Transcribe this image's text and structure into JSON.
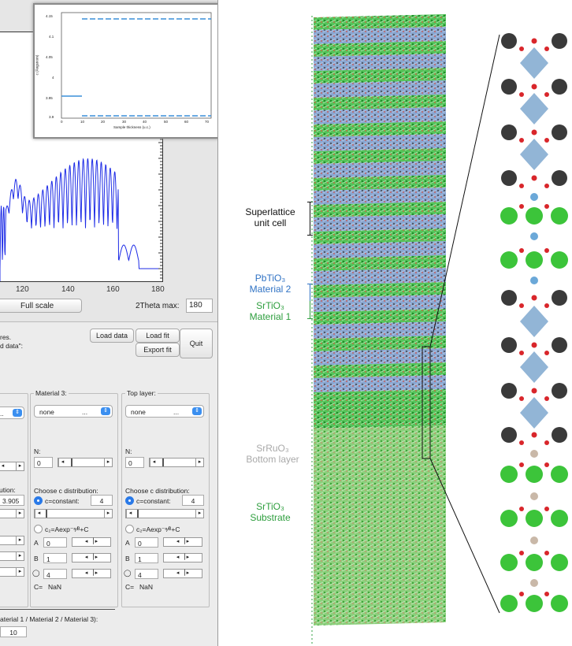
{
  "plot": {
    "x_ticks": [
      "120",
      "140",
      "160",
      "180"
    ],
    "full_scale_label": "Full scale",
    "two_theta_max_label": "2Theta max:",
    "two_theta_max_value": "180",
    "inset": {
      "y_ticks": [
        "4.15",
        "4.1",
        "4.05",
        "4",
        "3.95",
        "3.9"
      ],
      "x_ticks": [
        "0",
        "10",
        "20",
        "30",
        "40",
        "50",
        "60",
        "70"
      ],
      "ylabel": "c (Ångstrom)",
      "xlabel": "Sample thickness (u.c.)"
    }
  },
  "controls": {
    "instructions_line1": "res.",
    "instructions_line2": "d data\":",
    "load_data": "Load data",
    "load_fit": "Load fit",
    "export_fit": "Export fit",
    "quit": "Quit",
    "material1_partial": {
      "c_distribution_label": "ution:",
      "c_value": "3.905"
    },
    "material3": {
      "title": "Material 3:",
      "dropdown": "none",
      "n_label": "N:",
      "n_value": "0",
      "c_distribution_label": "Choose c distribution:",
      "c_constant_label": "c=constant:",
      "c_constant_value": "4",
      "c_exp_label": "c₂=Aexp⁻ⁿ⁄ᴮ+C",
      "a_label": "A",
      "a_value": "0",
      "b_label": "B",
      "b_value": "1",
      "sigma_value": "4",
      "c_eq_label": "C=",
      "c_eq_value": "NaN"
    },
    "top_layer": {
      "title": "Top layer:",
      "dropdown": "none",
      "n_label": "N:",
      "n_value": "0",
      "c_distribution_label": "Choose c distribution:",
      "c_constant_label": "c=constant:",
      "c_constant_value": "4",
      "c_exp_label": "c₂=Aexp⁻ⁿ⁄ᴮ+C",
      "a_label": "A",
      "a_value": "0",
      "b_label": "B",
      "b_value": "1",
      "sigma_value": "4",
      "c_eq_label": "C=",
      "c_eq_value": "NaN"
    },
    "repeat_label": "aterial 1 / Material 2 / Material 3):",
    "repeat_value": "10"
  },
  "structure": {
    "superlattice_label_1": "Superlattice",
    "superlattice_label_2": "unit cell",
    "material2_formula": "PbTiO₃",
    "material2_label": "Material 2",
    "material1_formula": "SrTiO₃",
    "material1_label": "Material 1",
    "bottom_formula": "SrRuO₃",
    "bottom_label": "Bottom layer",
    "substrate_formula": "SrTiO₃",
    "substrate_label": "Substrate",
    "colors": {
      "material2": "#2f72c4",
      "material1": "#2e9e3e",
      "bottom": "#a9a9a9",
      "substrate": "#2e9e3e"
    }
  }
}
